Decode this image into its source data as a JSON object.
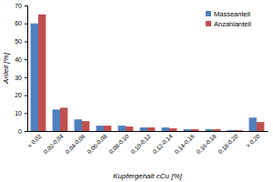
{
  "chart_data": {
    "type": "bar",
    "categories": [
      "< 0,02",
      "0,02-0,04",
      "0,04-0,06",
      "0,06-0,08",
      "0,08-0,10",
      "0,10-0,12",
      "0,12-0,14",
      "0,14-0,16",
      "0,16-0,18",
      "0,18-0,20",
      "> 0,20"
    ],
    "series": [
      {
        "name": "Masseanteil",
        "color": "#4f81bd",
        "values": [
          60,
          12,
          6.5,
          3,
          3,
          2,
          2,
          1,
          1,
          0.5,
          7.5
        ]
      },
      {
        "name": "Anzahlanteil",
        "color": "#c0504d",
        "values": [
          65,
          13,
          5.5,
          3,
          2.5,
          2,
          1.5,
          1,
          1,
          0.5,
          5
        ]
      }
    ],
    "x_label": "Kupfergehalt cCu [%]",
    "y_label": "Anteil [%]",
    "ylim": [
      0,
      70
    ],
    "yticks": [
      0,
      10,
      20,
      30,
      40,
      50,
      60,
      70
    ],
    "grid": false,
    "legend": "upper right"
  }
}
